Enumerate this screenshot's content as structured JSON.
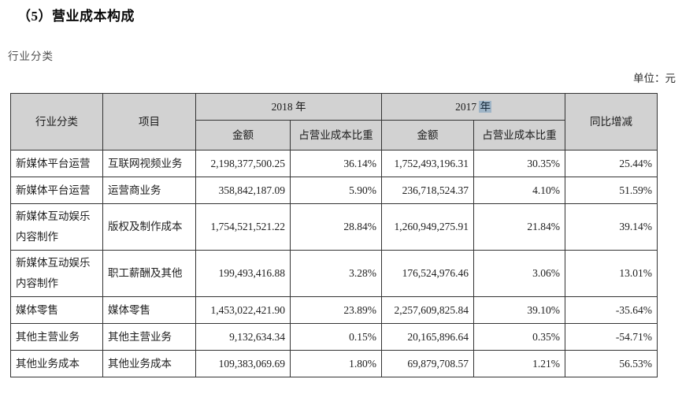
{
  "page": {
    "title": "（5）营业成本构成",
    "section_label": "行业分类",
    "unit_label": "单位：元"
  },
  "table": {
    "header": {
      "industry": "行业分类",
      "item": "项目",
      "year_2018": "2018 年",
      "year_2017_text": "2017",
      "year_2017_highlighted": "年",
      "amount": "金额",
      "cost_ratio": "占营业成本比重",
      "yoy": "同比增减"
    },
    "rows": [
      {
        "industry": "新媒体平台运营",
        "item": "互联网视频业务",
        "amount_2018": "2,198,377,500.25",
        "ratio_2018": "36.14%",
        "amount_2017": "1,752,493,196.31",
        "ratio_2017": "30.35%",
        "yoy": "25.44%"
      },
      {
        "industry": "新媒体平台运营",
        "item": "运营商业务",
        "amount_2018": "358,842,187.09",
        "ratio_2018": "5.90%",
        "amount_2017": "236,718,524.37",
        "ratio_2017": "4.10%",
        "yoy": "51.59%"
      },
      {
        "industry": "新媒体互动娱乐\n内容制作",
        "item": "版权及制作成本",
        "amount_2018": "1,754,521,521.22",
        "ratio_2018": "28.84%",
        "amount_2017": "1,260,949,275.91",
        "ratio_2017": "21.84%",
        "yoy": "39.14%"
      },
      {
        "industry": "新媒体互动娱乐\n内容制作",
        "item": "职工薪酬及其他",
        "amount_2018": "199,493,416.88",
        "ratio_2018": "3.28%",
        "amount_2017": "176,524,976.46",
        "ratio_2017": "3.06%",
        "yoy": "13.01%"
      },
      {
        "industry": "媒体零售",
        "item": "媒体零售",
        "amount_2018": "1,453,022,421.90",
        "ratio_2018": "23.89%",
        "amount_2017": "2,257,609,825.84",
        "ratio_2017": "39.10%",
        "yoy": "-35.64%"
      },
      {
        "industry": "其他主营业务",
        "item": "其他主营业务",
        "amount_2018": "9,132,634.34",
        "ratio_2018": "0.15%",
        "amount_2017": "20,165,896.64",
        "ratio_2017": "0.35%",
        "yoy": "-54.71%"
      },
      {
        "industry": "其他业务成本",
        "item": "其他业务成本",
        "amount_2018": "109,383,069.69",
        "ratio_2018": "1.80%",
        "amount_2017": "69,879,708.57",
        "ratio_2017": "1.21%",
        "yoy": "56.53%"
      }
    ]
  }
}
